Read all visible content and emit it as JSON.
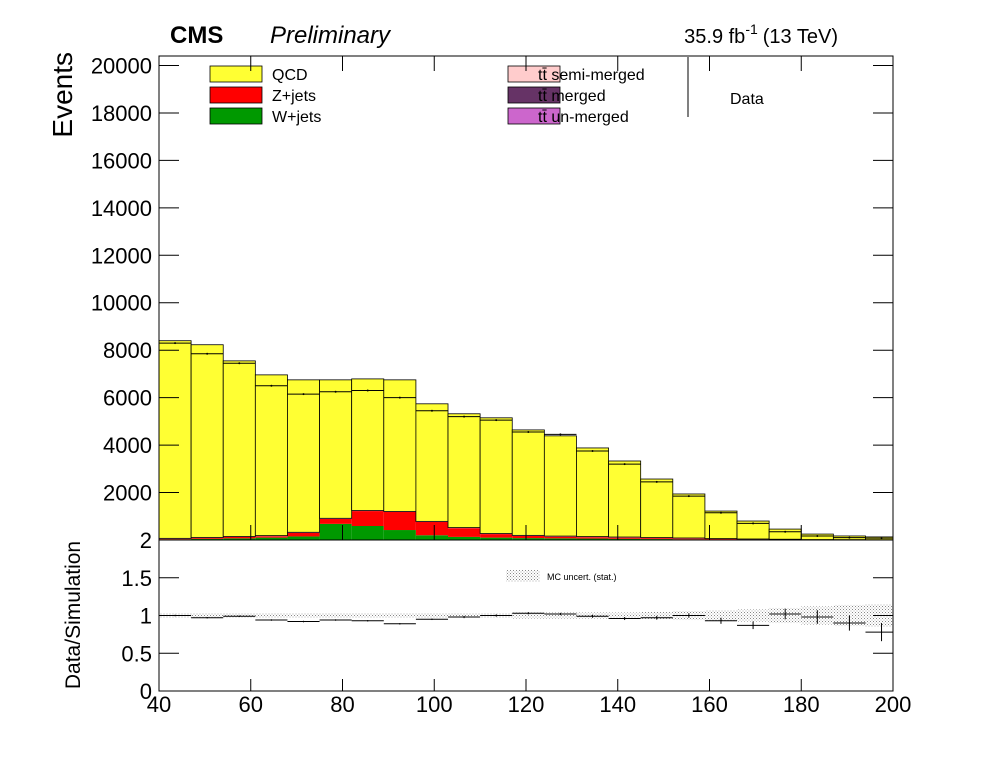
{
  "chart_data": [
    {
      "type": "stacked_histogram",
      "title": "CMS",
      "subtitle": "Preliminary",
      "lumi": "35.9 fb",
      "lumi_exponent": "-1",
      "lumi_energy": "(13 TeV)",
      "y_label": "Events",
      "bins": [
        40,
        47,
        54,
        61,
        68,
        75,
        82,
        89,
        96,
        103,
        110,
        117,
        124,
        131,
        138,
        145,
        152,
        159,
        166,
        173,
        180,
        187,
        194,
        201
      ],
      "xlim": [
        40,
        200
      ],
      "ylim": [
        0,
        20400
      ],
      "yticks": [
        2000,
        4000,
        6000,
        8000,
        10000,
        12000,
        14000,
        16000,
        18000,
        20000
      ],
      "series": [
        {
          "name": "W+jets",
          "color": "#009900",
          "values": [
            30,
            50,
            70,
            100,
            150,
            680,
            590,
            420,
            200,
            130,
            100,
            80,
            70,
            60,
            50,
            40,
            30,
            20,
            15,
            10,
            5,
            5,
            3
          ]
        },
        {
          "name": "Z+jets",
          "color": "#ff0000",
          "values": [
            20,
            40,
            60,
            60,
            150,
            210,
            630,
            760,
            560,
            370,
            150,
            90,
            70,
            60,
            50,
            40,
            30,
            20,
            15,
            10,
            5,
            3,
            2
          ]
        },
        {
          "name": "tt̄ un-merged",
          "color": "#cc66cc",
          "values": [
            5,
            5,
            5,
            10,
            10,
            10,
            10,
            10,
            10,
            10,
            10,
            10,
            10,
            10,
            10,
            10,
            10,
            5,
            5,
            5,
            3,
            2,
            2
          ]
        },
        {
          "name": "tt̄ merged",
          "color": "#663366",
          "values": [
            5,
            5,
            5,
            5,
            5,
            5,
            5,
            5,
            5,
            5,
            5,
            5,
            5,
            5,
            5,
            5,
            5,
            5,
            3,
            3,
            2,
            2,
            2
          ]
        },
        {
          "name": "tt̄ semi-merged",
          "color": "#ffcccc",
          "values": [
            10,
            10,
            10,
            10,
            10,
            10,
            10,
            10,
            10,
            10,
            10,
            10,
            10,
            10,
            10,
            10,
            10,
            10,
            5,
            5,
            3,
            3,
            2
          ]
        },
        {
          "name": "QCD",
          "color": "#ffff33",
          "values": [
            8330,
            8120,
            7400,
            6775,
            6425,
            5835,
            5545,
            5545,
            4955,
            4795,
            4875,
            4445,
            4225,
            3735,
            3205,
            2465,
            1855,
            1160,
            757,
            427,
            232,
            155,
            119
          ]
        }
      ],
      "data": {
        "name": "Data",
        "values": [
          8300,
          7850,
          7450,
          6500,
          6150,
          6250,
          6300,
          6000,
          5450,
          5200,
          5050,
          4550,
          4450,
          3750,
          3200,
          2450,
          1850,
          1150,
          700,
          350,
          170,
          100,
          80
        ]
      }
    },
    {
      "type": "ratio",
      "y_label": "Data/Simulation",
      "xlim": [
        40,
        200
      ],
      "ylim": [
        0,
        2
      ],
      "xticks": [
        40,
        60,
        80,
        100,
        120,
        140,
        160,
        180,
        200
      ],
      "yticks": [
        0,
        0.5,
        1,
        1.5,
        2
      ],
      "values": [
        1.0,
        0.97,
        0.99,
        0.94,
        0.92,
        0.94,
        0.93,
        0.89,
        0.95,
        0.98,
        1.0,
        1.03,
        1.02,
        0.99,
        0.96,
        0.97,
        1.0,
        0.93,
        0.87,
        1.02,
        0.98,
        0.9,
        0.78
      ],
      "errors": [
        0.01,
        0.01,
        0.01,
        0.01,
        0.01,
        0.01,
        0.01,
        0.01,
        0.01,
        0.015,
        0.015,
        0.015,
        0.015,
        0.02,
        0.02,
        0.025,
        0.03,
        0.04,
        0.05,
        0.07,
        0.09,
        0.1,
        0.12
      ],
      "band_name": "MC uncert. (stat.)",
      "band": [
        0.03,
        0.03,
        0.03,
        0.03,
        0.03,
        0.03,
        0.03,
        0.03,
        0.03,
        0.03,
        0.03,
        0.04,
        0.04,
        0.04,
        0.04,
        0.05,
        0.06,
        0.07,
        0.08,
        0.1,
        0.12,
        0.14,
        0.15
      ]
    }
  ]
}
